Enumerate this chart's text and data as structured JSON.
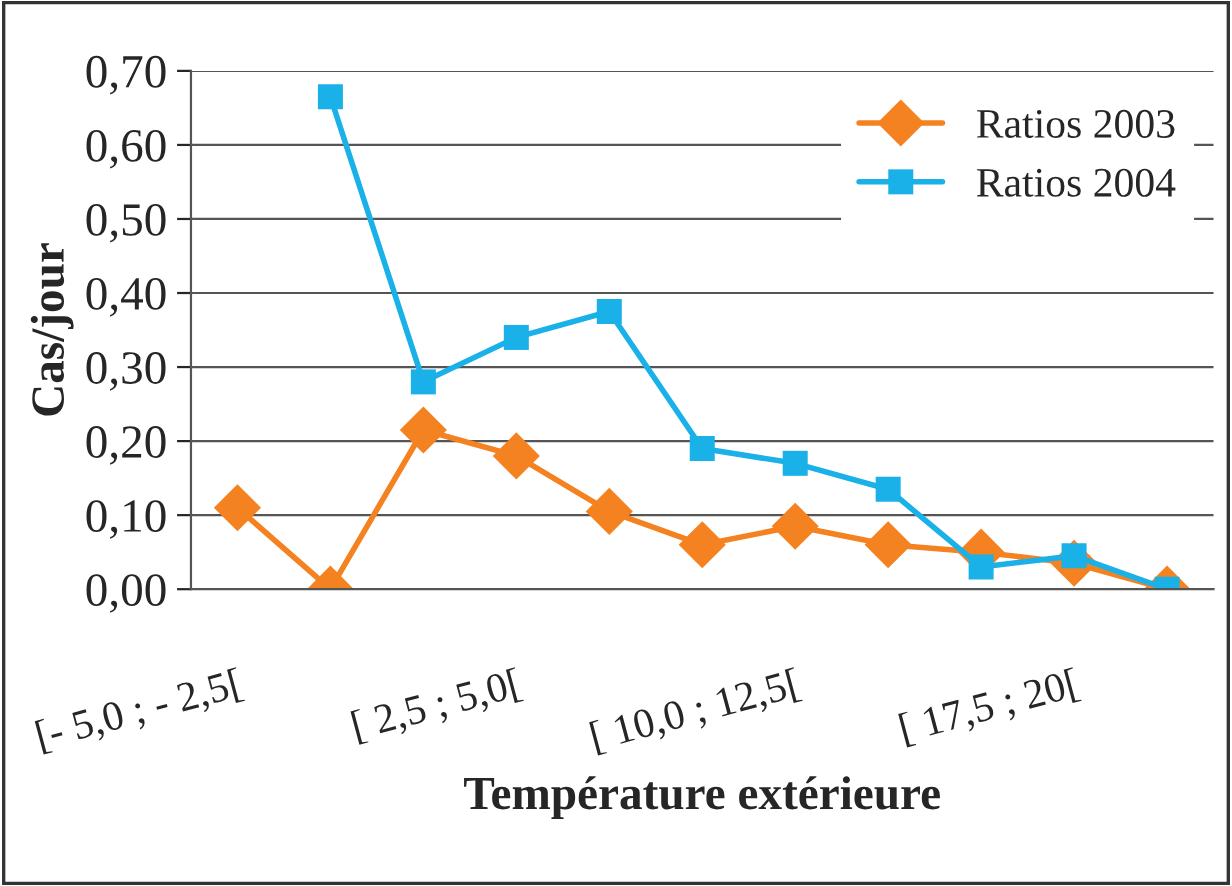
{
  "chart_data": {
    "type": "line",
    "xlabel": "Température extérieure",
    "ylabel": "Cas/jour",
    "categories": [
      "[- 5,0 ; - 2,5[",
      null,
      null,
      "[ 2,5 ; 5,0[",
      null,
      null,
      "[ 10,0 ; 12,5[",
      null,
      null,
      "[ 17,5 ; 20[",
      null
    ],
    "series": [
      {
        "name": "Ratios 2003",
        "color": "#f58220",
        "marker": "diamond",
        "values": [
          0.11,
          0.0,
          0.215,
          0.18,
          0.105,
          0.06,
          0.085,
          0.06,
          0.05,
          0.035,
          0.0
        ]
      },
      {
        "name": "Ratios 2004",
        "color": "#1ab0e8",
        "marker": "square",
        "values": [
          null,
          0.665,
          0.28,
          0.34,
          0.375,
          0.19,
          0.17,
          0.135,
          0.03,
          0.045,
          0.0
        ]
      }
    ],
    "ylim": [
      0,
      0.7
    ],
    "yticks": [
      {
        "value": 0,
        "label": "0,00"
      },
      {
        "value": 0.1,
        "label": "0,10"
      },
      {
        "value": 0.2,
        "label": "0,20"
      },
      {
        "value": 0.3,
        "label": "0,30"
      },
      {
        "value": 0.4,
        "label": "0,40"
      },
      {
        "value": 0.5,
        "label": "0,50"
      },
      {
        "value": 0.6,
        "label": "0,60"
      },
      {
        "value": 0.7,
        "label": "0,70"
      }
    ],
    "grid": "y",
    "legend": "top right"
  }
}
